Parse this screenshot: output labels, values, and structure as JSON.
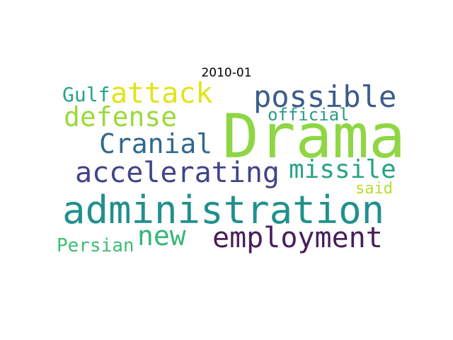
{
  "title": "2010-01",
  "words": [
    {
      "text": "Drama",
      "color": "#8fd644"
    },
    {
      "text": "administration",
      "color": "#21908d"
    },
    {
      "text": "accelerating",
      "color": "#414487"
    },
    {
      "text": "employment",
      "color": "#481e5b"
    },
    {
      "text": "possible",
      "color": "#3b5c8c"
    },
    {
      "text": "missile",
      "color": "#26a584"
    },
    {
      "text": "attack",
      "color": "#e2e418"
    },
    {
      "text": "defense",
      "color": "#9bd93c"
    },
    {
      "text": "Cranial",
      "color": "#31688e"
    },
    {
      "text": "new",
      "color": "#35b779"
    },
    {
      "text": "official",
      "color": "#2a9a8a"
    },
    {
      "text": "Gulf",
      "color": "#2aa38a"
    },
    {
      "text": "Persian",
      "color": "#3dbc74"
    },
    {
      "text": "said",
      "color": "#b5de2b"
    }
  ]
}
